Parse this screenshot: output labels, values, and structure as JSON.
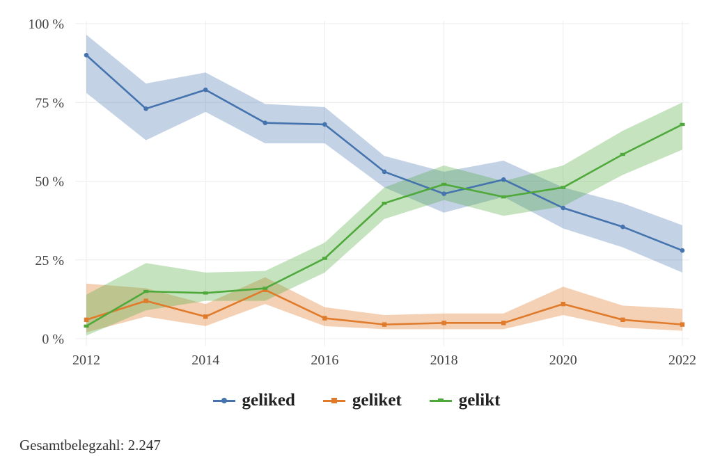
{
  "chart_data": {
    "type": "line",
    "x": [
      2012,
      2013,
      2014,
      2015,
      2016,
      2017,
      2018,
      2019,
      2020,
      2021,
      2022
    ],
    "x_ticks": [
      2012,
      2014,
      2016,
      2018,
      2020,
      2022
    ],
    "ylim": [
      0,
      100
    ],
    "y_ticks": [
      0,
      25,
      50,
      75,
      100
    ],
    "y_tick_labels": [
      "0 %",
      "25 %",
      "50 %",
      "75 %",
      "100 %"
    ],
    "x_tick_labels": [
      "2012",
      "2014",
      "2016",
      "2018",
      "2020",
      "2022"
    ],
    "grid": true,
    "legend_position": "bottom-center",
    "series": [
      {
        "name": "geliked",
        "color": "#4473AE",
        "marker": "circle",
        "values": [
          90,
          73,
          79,
          68.5,
          68,
          53,
          46,
          50.5,
          41.5,
          35.5,
          28
        ],
        "lower": [
          78,
          63,
          72,
          62,
          62,
          48,
          40,
          45,
          35,
          29,
          21
        ],
        "upper": [
          96.5,
          81,
          84.5,
          74.5,
          73.5,
          58,
          53,
          56.5,
          48,
          43,
          36
        ]
      },
      {
        "name": "geliket",
        "color": "#E07B2C",
        "marker": "square",
        "values": [
          6,
          12,
          7,
          15.5,
          6.5,
          4.5,
          5,
          5,
          11,
          6,
          4.5
        ],
        "lower": [
          2,
          7,
          4,
          11,
          4,
          3,
          3,
          3,
          7.5,
          3.5,
          2.5
        ],
        "upper": [
          17.5,
          16,
          11,
          19.5,
          10,
          7.5,
          8,
          8,
          16.5,
          10.5,
          9.5
        ]
      },
      {
        "name": "gelikt",
        "color": "#4EA93A",
        "marker": "triangle",
        "values": [
          4,
          15,
          14.5,
          16,
          25.5,
          43,
          49,
          45,
          48,
          58.5,
          68
        ],
        "lower": [
          1,
          9,
          12,
          12,
          21,
          38,
          44,
          39,
          42,
          52,
          60
        ],
        "upper": [
          14,
          24,
          21,
          21.5,
          30.5,
          48,
          55,
          50,
          55,
          66,
          75
        ]
      }
    ]
  },
  "footer": {
    "total_label": "Gesamtbelegzahl: 2.247"
  }
}
